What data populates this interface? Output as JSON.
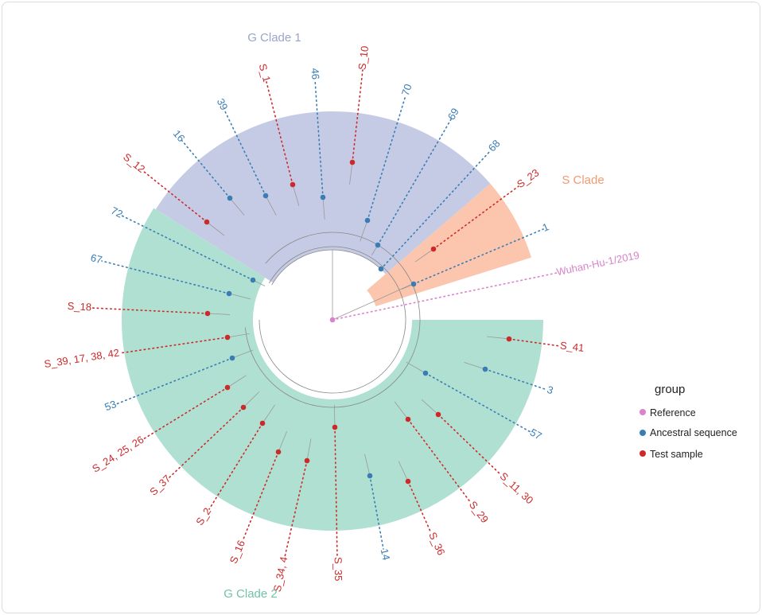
{
  "clades": [
    {
      "label": "G Clade 1",
      "color": "#c5cbe4",
      "text_color": "#9aa5cb"
    },
    {
      "label": "S Clade",
      "color": "#fbc6ad",
      "text_color": "#f29a72"
    },
    {
      "label": "G Clade 2",
      "color": "#b0e0d2",
      "text_color": "#72c3a6"
    }
  ],
  "legend": {
    "title": "group",
    "items": [
      {
        "label": "Reference",
        "color": "#d883cb"
      },
      {
        "label": "Ancestral sequence",
        "color": "#3a7db4"
      },
      {
        "label": "Test sample",
        "color": "#cc2a2a"
      }
    ]
  },
  "tips": [
    {
      "label": "Wuhan-Hu-1/2019",
      "group": "Reference"
    },
    {
      "label": "1",
      "group": "Ancestral sequence"
    },
    {
      "label": "S_23",
      "group": "Test sample"
    },
    {
      "label": "68",
      "group": "Ancestral sequence"
    },
    {
      "label": "69",
      "group": "Ancestral sequence"
    },
    {
      "label": "70",
      "group": "Ancestral sequence"
    },
    {
      "label": "S_10",
      "group": "Test sample"
    },
    {
      "label": "46",
      "group": "Ancestral sequence"
    },
    {
      "label": "S_1",
      "group": "Test sample"
    },
    {
      "label": "39",
      "group": "Ancestral sequence"
    },
    {
      "label": "16",
      "group": "Ancestral sequence"
    },
    {
      "label": "S_12",
      "group": "Test sample"
    },
    {
      "label": "72",
      "group": "Ancestral sequence"
    },
    {
      "label": "67",
      "group": "Ancestral sequence"
    },
    {
      "label": "S_18",
      "group": "Test sample"
    },
    {
      "label": "S_39, 17, 38, 42",
      "group": "Test sample"
    },
    {
      "label": "53",
      "group": "Ancestral sequence"
    },
    {
      "label": "S_24, 25, 26",
      "group": "Test sample"
    },
    {
      "label": "S_37",
      "group": "Test sample"
    },
    {
      "label": "S_2",
      "group": "Test sample"
    },
    {
      "label": "S_16",
      "group": "Test sample"
    },
    {
      "label": "S_34, 4",
      "group": "Test sample"
    },
    {
      "label": "S_35",
      "group": "Test sample"
    },
    {
      "label": "14",
      "group": "Ancestral sequence"
    },
    {
      "label": "S_36",
      "group": "Test sample"
    },
    {
      "label": "S_29",
      "group": "Test sample"
    },
    {
      "label": "S_11, 30",
      "group": "Test sample"
    },
    {
      "label": "57",
      "group": "Ancestral sequence"
    },
    {
      "label": "3",
      "group": "Ancestral sequence"
    },
    {
      "label": "S_41",
      "group": "Test sample"
    }
  ]
}
